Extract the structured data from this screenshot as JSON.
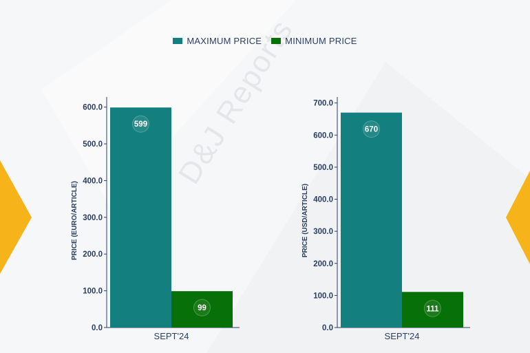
{
  "legend": {
    "max_label": "MAXIMUM PRICE",
    "min_label": "MINIMUM PRICE",
    "max_color": "#137f7e",
    "min_color": "#087008"
  },
  "watermark": "D&J Reports",
  "accent_color": "#f6b41a",
  "chart_data": [
    {
      "type": "bar",
      "categories": [
        "SEPT'24"
      ],
      "series": [
        {
          "name": "MAXIMUM PRICE",
          "values": [
            599
          ]
        },
        {
          "name": "MINIMUM PRICE",
          "values": [
            99
          ]
        }
      ],
      "ylabel": "PRICE (EURO/ARTICLE)",
      "ylim": [
        0,
        620
      ],
      "yticks": [
        "0.0",
        "100.0",
        "200.0",
        "300.0",
        "400.0",
        "500.0",
        "600.0"
      ],
      "ytick_values": [
        0,
        100,
        200,
        300,
        400,
        500,
        600
      ]
    },
    {
      "type": "bar",
      "categories": [
        "SEPT'24"
      ],
      "series": [
        {
          "name": "MAXIMUM PRICE",
          "values": [
            670
          ]
        },
        {
          "name": "MINIMUM PRICE",
          "values": [
            111
          ]
        }
      ],
      "ylabel": "PRICE (USD/ARTICLE)",
      "ylim": [
        0,
        710
      ],
      "yticks": [
        "0.0",
        "100.0",
        "200.0",
        "300.0",
        "400.0",
        "500.0",
        "600.0",
        "700.0"
      ],
      "ytick_values": [
        0,
        100,
        200,
        300,
        400,
        500,
        600,
        700
      ]
    }
  ]
}
